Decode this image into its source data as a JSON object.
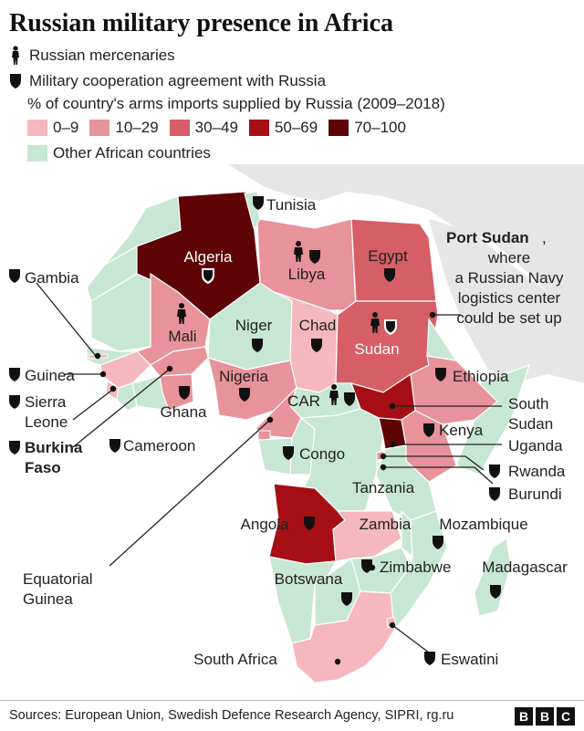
{
  "title": "Russian military presence in Africa",
  "legend": {
    "mercenaries": "Russian mercenaries",
    "agreement": "Military cooperation agreement with Russia",
    "arms_title": "% of country's arms imports supplied by Russia (2009–2018)",
    "bins": [
      {
        "label": "0–9",
        "color": "#f4b8bd"
      },
      {
        "label": "10–29",
        "color": "#e89299"
      },
      {
        "label": "30–49",
        "color": "#d65e66"
      },
      {
        "label": "50–69",
        "color": "#a60f14"
      },
      {
        "label": "70–100",
        "color": "#5e0306"
      }
    ],
    "other": {
      "label": "Other African countries",
      "color": "#c8e6d4"
    }
  },
  "annotation": {
    "bold": "Port Sudan",
    "rest": [
      ",",
      "where",
      "a Russian Navy",
      "logistics center",
      "could be set up"
    ]
  },
  "countries": {
    "algeria": "Algeria",
    "tunisia": "Tunisia",
    "libya": "Libya",
    "egypt": "Egypt",
    "mali": "Mali",
    "niger": "Niger",
    "chad": "Chad",
    "sudan": "Sudan",
    "nigeria": "Nigeria",
    "ethiopia": "Ethiopia",
    "gambia": "Gambia",
    "guinea": "Guinea",
    "sierra_leone": [
      "Sierra",
      "Leone"
    ],
    "ghana": "Ghana",
    "car": "CAR",
    "south_sudan": [
      "South",
      "Sudan"
    ],
    "kenya": "Kenya",
    "uganda": "Uganda",
    "burkina_faso": [
      "Burkina",
      "Faso"
    ],
    "cameroon": "Cameroon",
    "congo": "Congo",
    "rwanda": "Rwanda",
    "burundi": "Burundi",
    "tanzania": "Tanzania",
    "angola": "Angola",
    "zambia": "Zambia",
    "mozambique": "Mozambique",
    "equatorial_guinea": [
      "Equatorial",
      "Guinea"
    ],
    "zimbabwe": "Zimbabwe",
    "madagascar": "Madagascar",
    "botswana": "Botswana",
    "south_africa": "South Africa",
    "eswatini": "Eswatini"
  },
  "source": "Sources: European Union, Swedish Defence Research Agency, SIPRI, rg.ru",
  "brand": [
    "B",
    "B",
    "C"
  ]
}
